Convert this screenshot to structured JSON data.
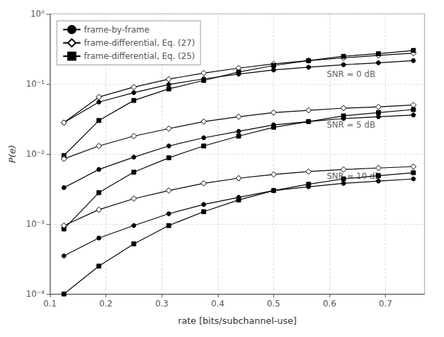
{
  "chart_data": {
    "type": "line",
    "xlabel": "rate [bits/subchannel-use]",
    "ylabel": "P(e)",
    "log": "y",
    "grid": true,
    "legend": "upper left",
    "xlim": [
      0.1,
      0.77
    ],
    "xticks": [
      0.1,
      0.2,
      0.3,
      0.4,
      0.5,
      0.6,
      0.7
    ],
    "ylim": [
      0.0001,
      1.0
    ],
    "yticks": [
      {
        "value": 0.0001,
        "label": "10⁻⁴"
      },
      {
        "value": 0.001,
        "label": "10⁻³"
      },
      {
        "value": 0.01,
        "label": "10⁻²"
      },
      {
        "value": 0.1,
        "label": "10⁻¹"
      },
      {
        "value": 1.0,
        "label": "10⁰"
      }
    ],
    "x": [
      0.125,
      0.1875,
      0.25,
      0.3125,
      0.375,
      0.4375,
      0.5,
      0.5625,
      0.625,
      0.6875,
      0.75
    ],
    "series": [
      {
        "name": "frame-by-frame",
        "color": "#000000",
        "marker": "circle",
        "values": [
          0.028,
          0.055,
          0.075,
          0.098,
          0.118,
          0.138,
          0.158,
          0.173,
          0.188,
          0.2,
          0.215
        ]
      },
      {
        "name": "frame-differential, Eq. (27)",
        "color": "#000000",
        "marker": "diamond",
        "values": [
          0.028,
          0.065,
          0.09,
          0.117,
          0.143,
          0.168,
          0.193,
          0.215,
          0.235,
          0.255,
          0.275
        ]
      },
      {
        "name": "frame-differential, Eq. (25)",
        "color": "#000000",
        "marker": "square",
        "values": [
          0.0095,
          0.03,
          0.058,
          0.085,
          0.112,
          0.148,
          0.183,
          0.215,
          0.248,
          0.27,
          0.3
        ]
      },
      {
        "name": "frame-by-frame",
        "color": "#000000",
        "marker": "circle",
        "values": [
          0.0033,
          0.006,
          0.009,
          0.013,
          0.017,
          0.021,
          0.026,
          0.029,
          0.032,
          0.034,
          0.036
        ]
      },
      {
        "name": "frame-differential, Eq. (27)",
        "color": "#000000",
        "marker": "diamond",
        "values": [
          0.0085,
          0.013,
          0.018,
          0.023,
          0.029,
          0.034,
          0.039,
          0.042,
          0.045,
          0.047,
          0.05
        ]
      },
      {
        "name": "frame-differential, Eq. (25)",
        "color": "#000000",
        "marker": "square",
        "values": [
          0.00085,
          0.0028,
          0.0055,
          0.0088,
          0.013,
          0.018,
          0.024,
          0.029,
          0.035,
          0.039,
          0.043
        ]
      },
      {
        "name": "frame-by-frame",
        "color": "#000000",
        "marker": "circle",
        "values": [
          0.00035,
          0.00063,
          0.00095,
          0.0014,
          0.0019,
          0.0024,
          0.003,
          0.0034,
          0.0038,
          0.0041,
          0.0044
        ]
      },
      {
        "name": "frame-differential, Eq. (27)",
        "color": "#000000",
        "marker": "diamond",
        "values": [
          0.00095,
          0.0016,
          0.0023,
          0.003,
          0.0038,
          0.0045,
          0.0051,
          0.0056,
          0.006,
          0.0063,
          0.0066
        ]
      },
      {
        "name": "frame-differential, Eq. (25)",
        "color": "#000000",
        "marker": "square",
        "values": [
          0.0001,
          0.00025,
          0.00052,
          0.00095,
          0.0015,
          0.0022,
          0.003,
          0.0037,
          0.0044,
          0.0049,
          0.0054
        ]
      }
    ],
    "annotations": [
      {
        "text": "SNR = 0 dB",
        "x": 0.595,
        "y": 0.138
      },
      {
        "text": "SNR = 5 dB",
        "x": 0.595,
        "y": 0.026
      },
      {
        "text": "SNR = 10 dB",
        "x": 0.595,
        "y": 0.0048
      }
    ]
  }
}
